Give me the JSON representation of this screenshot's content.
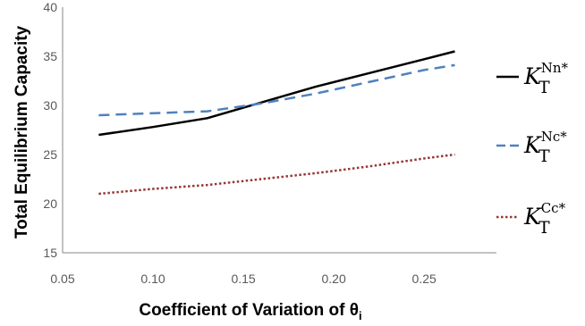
{
  "chart_data": {
    "type": "line",
    "title": "",
    "xlabel": "Coefficient of Variation of θ",
    "xlabel_subscript": "i",
    "ylabel": "Total Equilibrium Capacity",
    "xlim": [
      0.05,
      0.29
    ],
    "ylim": [
      15,
      40
    ],
    "x_ticks": [
      "0.05",
      "0.10",
      "0.15",
      "0.20",
      "0.25"
    ],
    "y_ticks": [
      "15",
      "20",
      "25",
      "30",
      "35",
      "40"
    ],
    "x_tick_values": [
      0.05,
      0.1,
      0.15,
      0.2,
      0.25
    ],
    "y_tick_values": [
      15,
      20,
      25,
      30,
      35,
      40
    ],
    "grid": false,
    "legend_position": "right",
    "series": [
      {
        "name": "K_T^{Nn*}",
        "label_main": "K",
        "label_sub": "T",
        "label_sup": "Nn*",
        "color": "#000000",
        "style": "solid",
        "x": [
          0.07,
          0.1,
          0.13,
          0.16,
          0.19,
          0.22,
          0.25,
          0.267
        ],
        "y": [
          27.0,
          27.8,
          28.7,
          30.3,
          31.9,
          33.3,
          34.7,
          35.5
        ]
      },
      {
        "name": "K_T^{Nc*}",
        "label_main": "K",
        "label_sub": "T",
        "label_sup": "Nc*",
        "color": "#4f81bd",
        "style": "dashed",
        "x": [
          0.07,
          0.1,
          0.13,
          0.16,
          0.19,
          0.22,
          0.25,
          0.267
        ],
        "y": [
          29.0,
          29.2,
          29.4,
          30.2,
          31.2,
          32.4,
          33.6,
          34.1
        ]
      },
      {
        "name": "K_T^{Cc*}",
        "label_main": "K",
        "label_sub": "T",
        "label_sup": "Cc*",
        "color": "#953735",
        "style": "dotted",
        "x": [
          0.07,
          0.1,
          0.13,
          0.16,
          0.19,
          0.22,
          0.25,
          0.267
        ],
        "y": [
          21.0,
          21.5,
          21.9,
          22.5,
          23.1,
          23.8,
          24.6,
          25.0
        ]
      }
    ]
  }
}
